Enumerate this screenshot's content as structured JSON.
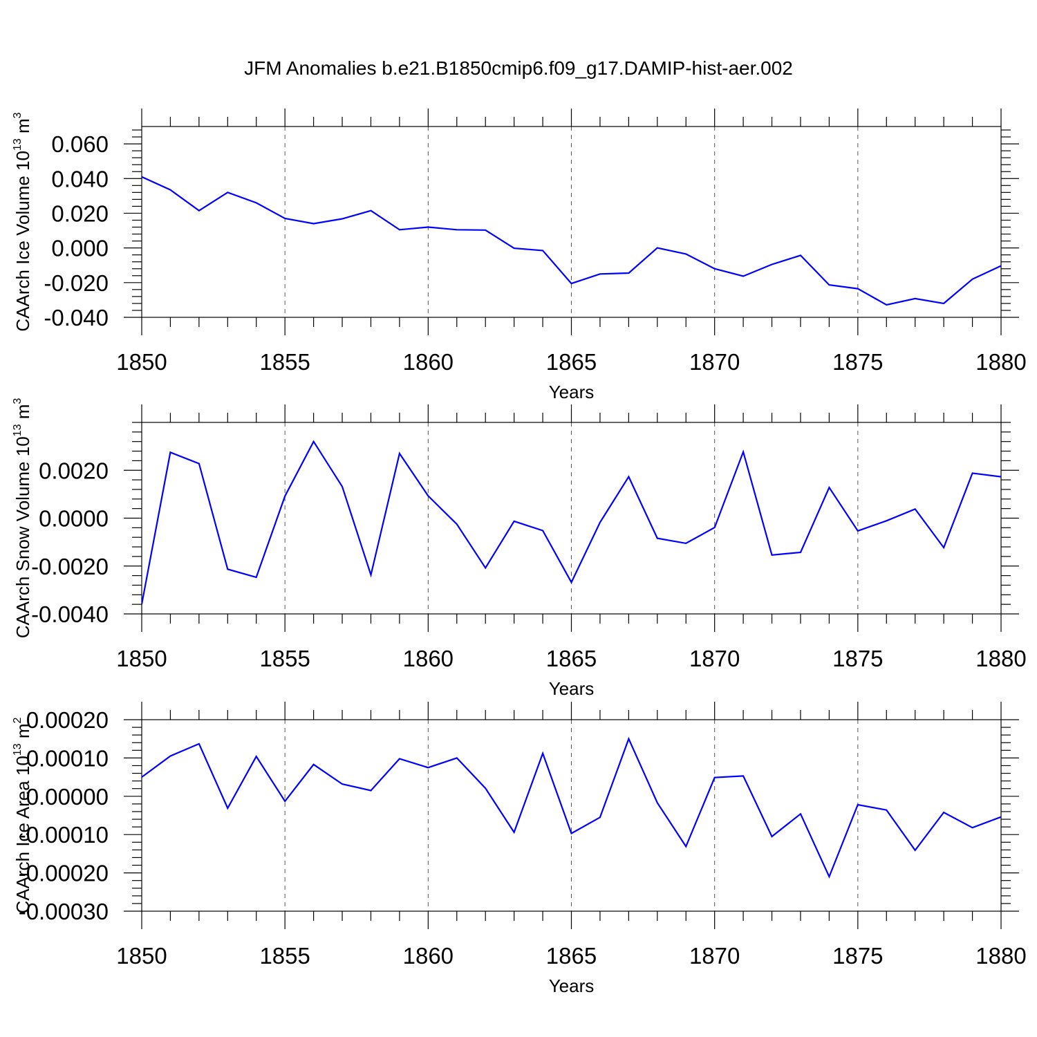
{
  "figure": {
    "title": "JFM Anomalies b.e21.B1850cmip6.f09_g17.DAMIP-hist-aer.002"
  },
  "chart_data": [
    {
      "type": "line",
      "title": "",
      "xlabel": "Years",
      "ylabel": "CAArch Ice Volume 10",
      "ylabel_exp": "13",
      "ylabel_unit": " m",
      "ylabel_unit_exp": "3",
      "xlim": [
        1850,
        1880
      ],
      "ylim": [
        -0.04,
        0.07
      ],
      "x_ticks": [
        1850,
        1855,
        1860,
        1865,
        1870,
        1875,
        1880
      ],
      "y_ticks": [
        -0.04,
        -0.02,
        0.0,
        0.02,
        0.04,
        0.06
      ],
      "y_tick_labels": [
        "-0.040",
        "-0.020",
        "0.000",
        "0.020",
        "0.040",
        "0.060"
      ],
      "grid": "dashed vertical at major x ticks",
      "color": "#0000ff",
      "x": [
        1850,
        1851,
        1852,
        1853,
        1854,
        1855,
        1856,
        1857,
        1858,
        1859,
        1860,
        1861,
        1862,
        1863,
        1864,
        1865,
        1866,
        1867,
        1868,
        1869,
        1870,
        1871,
        1872,
        1873,
        1874,
        1875,
        1876,
        1877,
        1878,
        1879,
        1880
      ],
      "values": [
        0.041,
        0.0335,
        0.0215,
        0.032,
        0.026,
        0.017,
        0.014,
        0.0168,
        0.0215,
        0.0105,
        0.012,
        0.0105,
        0.0103,
        -0.0002,
        -0.0015,
        -0.0205,
        -0.015,
        -0.0145,
        0.0,
        -0.0035,
        -0.012,
        -0.0163,
        -0.0095,
        -0.0043,
        -0.0213,
        -0.0235,
        -0.0328,
        -0.0292,
        -0.032,
        -0.018,
        -0.0103
      ]
    },
    {
      "type": "line",
      "title": "",
      "xlabel": "Years",
      "ylabel": "CAArch Snow Volume 10",
      "ylabel_exp": "13",
      "ylabel_unit": " m",
      "ylabel_unit_exp": "3",
      "xlim": [
        1850,
        1880
      ],
      "ylim": [
        -0.004,
        0.004
      ],
      "x_ticks": [
        1850,
        1855,
        1860,
        1865,
        1870,
        1875,
        1880
      ],
      "y_ticks": [
        -0.004,
        -0.002,
        0.0,
        0.002
      ],
      "y_tick_labels": [
        "-0.0040",
        "-0.0020",
        "0.0000",
        "0.0020"
      ],
      "grid": "dashed vertical at major x ticks",
      "color": "#0000ff",
      "x": [
        1850,
        1851,
        1852,
        1853,
        1854,
        1855,
        1856,
        1857,
        1858,
        1859,
        1860,
        1861,
        1862,
        1863,
        1864,
        1865,
        1866,
        1867,
        1868,
        1869,
        1870,
        1871,
        1872,
        1873,
        1874,
        1875,
        1876,
        1877,
        1878,
        1879,
        1880
      ],
      "values": [
        -0.0036,
        0.00275,
        0.00228,
        -0.00213,
        -0.00247,
        0.00092,
        0.0032,
        0.00132,
        -0.00237,
        0.0027,
        0.00093,
        -0.00025,
        -0.00208,
        -0.00013,
        -0.00052,
        -0.00268,
        -0.00018,
        0.00173,
        -0.00084,
        -0.00105,
        -0.00039,
        0.00277,
        -0.00154,
        -0.00143,
        0.00128,
        -0.00053,
        -0.00011,
        0.00038,
        -0.00123,
        0.00188,
        0.00173
      ]
    },
    {
      "type": "line",
      "title": "",
      "xlabel": "Years",
      "ylabel": "CAArch Ice Area 10",
      "ylabel_exp": "13",
      "ylabel_unit": " m",
      "ylabel_unit_exp": "2",
      "xlim": [
        1850,
        1880
      ],
      "ylim": [
        -0.0003,
        0.0002
      ],
      "x_ticks": [
        1850,
        1855,
        1860,
        1865,
        1870,
        1875,
        1880
      ],
      "y_ticks": [
        -0.0003,
        -0.0002,
        -0.0001,
        0.0,
        0.0001,
        0.0002
      ],
      "y_tick_labels": [
        "-0.00030",
        "-0.00020",
        "-0.00010",
        "0.00000",
        "0.00010",
        "0.00020"
      ],
      "grid": "dashed vertical at major x ticks",
      "color": "#0000ff",
      "x": [
        1850,
        1851,
        1852,
        1853,
        1854,
        1855,
        1856,
        1857,
        1858,
        1859,
        1860,
        1861,
        1862,
        1863,
        1864,
        1865,
        1866,
        1867,
        1868,
        1869,
        1870,
        1871,
        1872,
        1873,
        1874,
        1875,
        1876,
        1877,
        1878,
        1879,
        1880
      ],
      "values": [
        5e-05,
        0.000105,
        0.000137,
        -3.1e-05,
        0.000104,
        -1.3e-05,
        8.3e-05,
        3.2e-05,
        1.5e-05,
        9.8e-05,
        7.5e-05,
        0.0001,
        2.1e-05,
        -9.4e-05,
        0.000112,
        -9.7e-05,
        -5.5e-05,
        0.00015,
        -1.7e-05,
        -0.000131,
        4.9e-05,
        5.3e-05,
        -0.000105,
        -4.6e-05,
        -0.00021,
        -2.2e-05,
        -3.6e-05,
        -0.000141,
        -4.2e-05,
        -8.2e-05,
        -5.4e-05
      ]
    }
  ]
}
